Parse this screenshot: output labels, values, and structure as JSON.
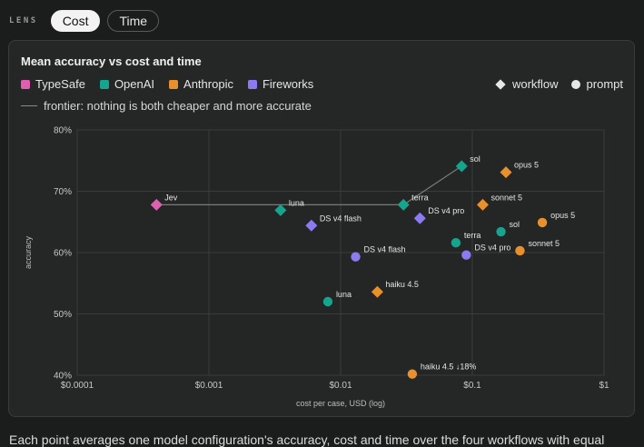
{
  "lens": {
    "label": "LENS",
    "tabs": [
      {
        "label": "Cost",
        "active": true
      },
      {
        "label": "Time",
        "active": false
      }
    ]
  },
  "legend": {
    "providers": [
      {
        "name": "TypeSafe",
        "color": "#e05fb3"
      },
      {
        "name": "OpenAI",
        "color": "#14a58f"
      },
      {
        "name": "Anthropic",
        "color": "#e8902e"
      },
      {
        "name": "Fireworks",
        "color": "#8b7bf0"
      }
    ],
    "markers": [
      {
        "label": "workflow",
        "shape": "diamond"
      },
      {
        "label": "prompt",
        "shape": "circle"
      }
    ],
    "frontier_label": "frontier: nothing is both cheaper and more accurate"
  },
  "footer": {
    "text": "Each point averages one model configuration's accuracy, cost and time over the four workflows with equal"
  },
  "chart_data": {
    "type": "scatter",
    "title": "Mean accuracy vs cost and time",
    "xlabel": "cost per case, USD (log)",
    "ylabel": "accuracy",
    "x_scale": "log",
    "xlim": [
      0.0001,
      1
    ],
    "ylim": [
      40,
      80
    ],
    "x_ticks": [
      {
        "value": 0.0001,
        "label": "$0.0001"
      },
      {
        "value": 0.001,
        "label": "$0.001"
      },
      {
        "value": 0.01,
        "label": "$0.01"
      },
      {
        "value": 0.1,
        "label": "$0.1"
      },
      {
        "value": 1,
        "label": "$1"
      }
    ],
    "y_ticks": [
      {
        "value": 40,
        "label": "40%"
      },
      {
        "value": 50,
        "label": "50%"
      },
      {
        "value": 60,
        "label": "60%"
      },
      {
        "value": 70,
        "label": "70%"
      },
      {
        "value": 80,
        "label": "80%"
      }
    ],
    "grid": true,
    "points": [
      {
        "label": "Jev",
        "provider": "TypeSafe",
        "kind": "workflow",
        "x": 0.0004,
        "y": 67.8
      },
      {
        "label": "luna",
        "provider": "OpenAI",
        "kind": "workflow",
        "x": 0.0035,
        "y": 66.9
      },
      {
        "label": "terra",
        "provider": "OpenAI",
        "kind": "workflow",
        "x": 0.03,
        "y": 67.8
      },
      {
        "label": "sol",
        "provider": "OpenAI",
        "kind": "workflow",
        "x": 0.083,
        "y": 74.1
      },
      {
        "label": "opus 5",
        "provider": "Anthropic",
        "kind": "workflow",
        "x": 0.18,
        "y": 73.1
      },
      {
        "label": "sonnet 5",
        "provider": "Anthropic",
        "kind": "workflow",
        "x": 0.12,
        "y": 67.8
      },
      {
        "label": "haiku 4.5",
        "provider": "Anthropic",
        "kind": "workflow",
        "x": 0.019,
        "y": 53.6
      },
      {
        "label": "DS v4 flash",
        "provider": "Fireworks",
        "kind": "workflow",
        "x": 0.006,
        "y": 64.4
      },
      {
        "label": "DS v4 pro",
        "provider": "Fireworks",
        "kind": "workflow",
        "x": 0.04,
        "y": 65.6
      },
      {
        "label": "luna",
        "provider": "OpenAI",
        "kind": "prompt",
        "x": 0.008,
        "y": 52.0
      },
      {
        "label": "terra",
        "provider": "OpenAI",
        "kind": "prompt",
        "x": 0.075,
        "y": 61.6
      },
      {
        "label": "sol",
        "provider": "OpenAI",
        "kind": "prompt",
        "x": 0.165,
        "y": 63.4
      },
      {
        "label": "opus 5",
        "provider": "Anthropic",
        "kind": "prompt",
        "x": 0.34,
        "y": 64.9
      },
      {
        "label": "sonnet 5",
        "provider": "Anthropic",
        "kind": "prompt",
        "x": 0.23,
        "y": 60.3
      },
      {
        "label": "haiku 4.5 ↓18%",
        "provider": "Anthropic",
        "kind": "prompt",
        "x": 0.035,
        "y": 40.2
      },
      {
        "label": "DS v4 flash",
        "provider": "Fireworks",
        "kind": "prompt",
        "x": 0.013,
        "y": 59.3
      },
      {
        "label": "DS v4 pro",
        "provider": "Fireworks",
        "kind": "prompt",
        "x": 0.09,
        "y": 59.6
      }
    ],
    "frontier": [
      {
        "x": 0.0004,
        "y": 67.8
      },
      {
        "x": 0.0035,
        "y": 67.8
      },
      {
        "x": 0.03,
        "y": 67.8
      },
      {
        "x": 0.083,
        "y": 74.1
      }
    ]
  }
}
